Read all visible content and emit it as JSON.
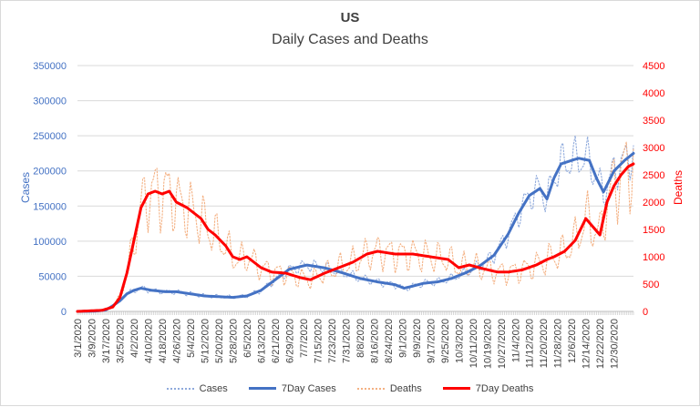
{
  "chart_data": {
    "type": "line",
    "title": "US",
    "subtitle": "Daily Cases and Deaths",
    "ylabel": "Cases",
    "y2label": "Deaths",
    "ylim": [
      0,
      350000
    ],
    "y2lim": [
      0,
      4500
    ],
    "yticks": [
      0,
      50000,
      100000,
      150000,
      200000,
      250000,
      300000,
      350000
    ],
    "y2ticks": [
      0,
      500,
      1000,
      1500,
      2000,
      2500,
      3000,
      3500,
      4000,
      4500
    ],
    "ytick_labels": [
      "0",
      "50000",
      "100000",
      "150000",
      "200000",
      "250000",
      "300000",
      "350000"
    ],
    "y2tick_labels": [
      "0",
      "500",
      "1000",
      "1500",
      "2000",
      "2500",
      "3000",
      "3500",
      "4000",
      "4500"
    ],
    "x_start": "2020-03-01",
    "x_days": 316,
    "x_tick_step_days": 8,
    "x_tick_labels": [
      "3/1/2020",
      "3/9/2020",
      "3/17/2020",
      "3/25/2020",
      "4/2/2020",
      "4/10/2020",
      "4/18/2020",
      "4/26/2020",
      "5/4/2020",
      "5/12/2020",
      "5/20/2020",
      "5/28/2020",
      "6/5/2020",
      "6/13/2020",
      "6/21/2020",
      "6/29/2020",
      "7/7/2020",
      "7/15/2020",
      "7/23/2020",
      "7/31/2020",
      "8/8/2020",
      "8/16/2020",
      "8/24/2020",
      "9/1/2020",
      "9/9/2020",
      "9/17/2020",
      "9/25/2020",
      "10/3/2020",
      "10/11/2020",
      "10/19/2020",
      "10/27/2020",
      "11/4/2020",
      "11/12/2020",
      "11/20/2020",
      "11/28/2020",
      "12/6/2020",
      "12/14/2020",
      "12/22/2020",
      "12/30/2020"
    ],
    "series": [
      {
        "name": "Cases",
        "axis": "left",
        "style": "dotted",
        "color": "#8faadc",
        "knots": [
          [
            0,
            0
          ],
          [
            10,
            300
          ],
          [
            16,
            2000
          ],
          [
            20,
            8000
          ],
          [
            24,
            15000
          ],
          [
            28,
            25000
          ],
          [
            32,
            30000
          ],
          [
            36,
            33000
          ],
          [
            42,
            30000
          ],
          [
            50,
            28000
          ],
          [
            56,
            28000
          ],
          [
            64,
            25000
          ],
          [
            72,
            22000
          ],
          [
            80,
            21000
          ],
          [
            88,
            20000
          ],
          [
            96,
            22000
          ],
          [
            104,
            30000
          ],
          [
            112,
            45000
          ],
          [
            120,
            60000
          ],
          [
            130,
            66000
          ],
          [
            140,
            62000
          ],
          [
            150,
            55000
          ],
          [
            160,
            47000
          ],
          [
            170,
            42000
          ],
          [
            180,
            38000
          ],
          [
            185,
            33000
          ],
          [
            190,
            36000
          ],
          [
            196,
            40000
          ],
          [
            204,
            42000
          ],
          [
            212,
            47000
          ],
          [
            220,
            55000
          ],
          [
            228,
            65000
          ],
          [
            236,
            80000
          ],
          [
            244,
            110000
          ],
          [
            250,
            140000
          ],
          [
            256,
            165000
          ],
          [
            262,
            175000
          ],
          [
            266,
            160000
          ],
          [
            270,
            190000
          ],
          [
            274,
            210000
          ],
          [
            280,
            215000
          ],
          [
            284,
            218000
          ],
          [
            290,
            215000
          ],
          [
            294,
            190000
          ],
          [
            298,
            170000
          ],
          [
            304,
            200000
          ],
          [
            310,
            215000
          ],
          [
            315,
            225000
          ]
        ],
        "noise_amp": 0.14,
        "noise_period": 7
      },
      {
        "name": "7Day Cases",
        "axis": "left",
        "style": "solid",
        "color": "#4472c4",
        "knots": [
          [
            0,
            0
          ],
          [
            10,
            300
          ],
          [
            16,
            2000
          ],
          [
            20,
            8000
          ],
          [
            24,
            15000
          ],
          [
            28,
            25000
          ],
          [
            32,
            30000
          ],
          [
            36,
            33000
          ],
          [
            42,
            30000
          ],
          [
            50,
            28000
          ],
          [
            56,
            28000
          ],
          [
            64,
            25000
          ],
          [
            72,
            22000
          ],
          [
            80,
            21000
          ],
          [
            88,
            20000
          ],
          [
            96,
            22000
          ],
          [
            104,
            30000
          ],
          [
            112,
            45000
          ],
          [
            120,
            60000
          ],
          [
            130,
            66000
          ],
          [
            140,
            62000
          ],
          [
            150,
            55000
          ],
          [
            160,
            47000
          ],
          [
            170,
            42000
          ],
          [
            180,
            38000
          ],
          [
            185,
            33000
          ],
          [
            190,
            36000
          ],
          [
            196,
            40000
          ],
          [
            204,
            42000
          ],
          [
            212,
            47000
          ],
          [
            220,
            55000
          ],
          [
            228,
            65000
          ],
          [
            236,
            80000
          ],
          [
            244,
            110000
          ],
          [
            250,
            140000
          ],
          [
            256,
            165000
          ],
          [
            262,
            175000
          ],
          [
            266,
            160000
          ],
          [
            270,
            190000
          ],
          [
            274,
            210000
          ],
          [
            280,
            215000
          ],
          [
            284,
            218000
          ],
          [
            290,
            215000
          ],
          [
            294,
            190000
          ],
          [
            298,
            170000
          ],
          [
            304,
            200000
          ],
          [
            310,
            215000
          ],
          [
            315,
            225000
          ]
        ]
      },
      {
        "name": "Deaths",
        "axis": "right",
        "style": "dotted",
        "color": "#f4b183",
        "knots": [
          [
            0,
            0
          ],
          [
            14,
            20
          ],
          [
            20,
            80
          ],
          [
            24,
            250
          ],
          [
            28,
            700
          ],
          [
            32,
            1300
          ],
          [
            36,
            1900
          ],
          [
            40,
            2150
          ],
          [
            44,
            2200
          ],
          [
            48,
            2150
          ],
          [
            52,
            2200
          ],
          [
            56,
            2000
          ],
          [
            62,
            1900
          ],
          [
            66,
            1800
          ],
          [
            70,
            1700
          ],
          [
            74,
            1500
          ],
          [
            78,
            1400
          ],
          [
            84,
            1200
          ],
          [
            88,
            1000
          ],
          [
            92,
            950
          ],
          [
            96,
            1000
          ],
          [
            104,
            800
          ],
          [
            110,
            720
          ],
          [
            118,
            700
          ],
          [
            126,
            620
          ],
          [
            132,
            580
          ],
          [
            140,
            700
          ],
          [
            148,
            800
          ],
          [
            156,
            900
          ],
          [
            164,
            1050
          ],
          [
            170,
            1100
          ],
          [
            180,
            1050
          ],
          [
            190,
            1050
          ],
          [
            200,
            1000
          ],
          [
            210,
            950
          ],
          [
            216,
            800
          ],
          [
            222,
            850
          ],
          [
            230,
            780
          ],
          [
            238,
            720
          ],
          [
            244,
            720
          ],
          [
            252,
            760
          ],
          [
            260,
            850
          ],
          [
            266,
            950
          ],
          [
            270,
            1000
          ],
          [
            276,
            1100
          ],
          [
            282,
            1300
          ],
          [
            288,
            1700
          ],
          [
            292,
            1550
          ],
          [
            296,
            1400
          ],
          [
            300,
            2000
          ],
          [
            304,
            2300
          ],
          [
            308,
            2500
          ],
          [
            312,
            2650
          ],
          [
            315,
            2700
          ]
        ],
        "noise_amp": 0.3,
        "noise_period": 7
      },
      {
        "name": "7Day Deaths",
        "axis": "right",
        "style": "solid",
        "color": "#ff0000",
        "knots": [
          [
            0,
            0
          ],
          [
            14,
            20
          ],
          [
            20,
            80
          ],
          [
            24,
            250
          ],
          [
            28,
            700
          ],
          [
            32,
            1300
          ],
          [
            36,
            1900
          ],
          [
            40,
            2150
          ],
          [
            44,
            2200
          ],
          [
            48,
            2150
          ],
          [
            52,
            2200
          ],
          [
            56,
            2000
          ],
          [
            62,
            1900
          ],
          [
            66,
            1800
          ],
          [
            70,
            1700
          ],
          [
            74,
            1500
          ],
          [
            78,
            1400
          ],
          [
            84,
            1200
          ],
          [
            88,
            1000
          ],
          [
            92,
            950
          ],
          [
            96,
            1000
          ],
          [
            104,
            800
          ],
          [
            110,
            720
          ],
          [
            118,
            700
          ],
          [
            126,
            620
          ],
          [
            132,
            580
          ],
          [
            140,
            700
          ],
          [
            148,
            800
          ],
          [
            156,
            900
          ],
          [
            164,
            1050
          ],
          [
            170,
            1100
          ],
          [
            180,
            1050
          ],
          [
            190,
            1050
          ],
          [
            200,
            1000
          ],
          [
            210,
            950
          ],
          [
            216,
            800
          ],
          [
            222,
            850
          ],
          [
            230,
            780
          ],
          [
            238,
            720
          ],
          [
            244,
            720
          ],
          [
            252,
            760
          ],
          [
            260,
            850
          ],
          [
            266,
            950
          ],
          [
            270,
            1000
          ],
          [
            276,
            1100
          ],
          [
            282,
            1300
          ],
          [
            288,
            1700
          ],
          [
            292,
            1550
          ],
          [
            296,
            1400
          ],
          [
            300,
            2000
          ],
          [
            304,
            2300
          ],
          [
            308,
            2500
          ],
          [
            312,
            2650
          ],
          [
            315,
            2700
          ]
        ]
      }
    ]
  }
}
